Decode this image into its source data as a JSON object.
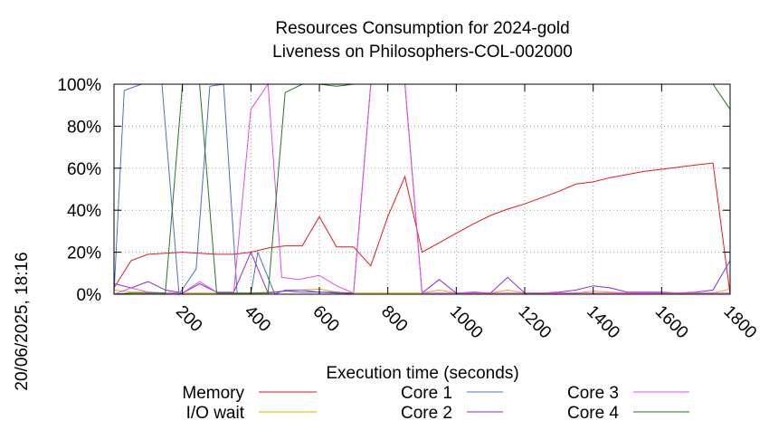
{
  "chart_data": {
    "type": "line",
    "title_line1": "Resources Consumption for 2024-gold",
    "title_line2": "Liveness on Philosophers-COL-002000",
    "xlabel": "Execution time (seconds)",
    "ylabel": "",
    "side_label": "20/06/2025, 18:16",
    "xlim": [
      0,
      1800
    ],
    "ylim": [
      0,
      100
    ],
    "x_ticks": [
      "200",
      "400",
      "600",
      "800",
      "1000",
      "1200",
      "1400",
      "1600",
      "1800"
    ],
    "x_tick_values": [
      200,
      400,
      600,
      800,
      1000,
      1200,
      1400,
      1600,
      1800
    ],
    "y_ticks": [
      "0%",
      "20%",
      "40%",
      "60%",
      "80%",
      "100%"
    ],
    "y_tick_values": [
      0,
      20,
      40,
      60,
      80,
      100
    ],
    "grid": true,
    "legend_placement": "bottom",
    "series": [
      {
        "name": "Memory",
        "color": "#e41a1c",
        "points": [
          [
            0,
            3
          ],
          [
            50,
            16
          ],
          [
            100,
            19
          ],
          [
            150,
            19.5
          ],
          [
            200,
            20
          ],
          [
            250,
            19.5
          ],
          [
            300,
            19
          ],
          [
            350,
            19
          ],
          [
            400,
            20
          ],
          [
            450,
            22
          ],
          [
            500,
            23
          ],
          [
            550,
            23
          ],
          [
            600,
            37
          ],
          [
            650,
            22.5
          ],
          [
            700,
            22.5
          ],
          [
            750,
            13.5
          ],
          [
            800,
            37
          ],
          [
            850,
            56
          ],
          [
            900,
            20
          ],
          [
            950,
            24.5
          ],
          [
            1000,
            29
          ],
          [
            1050,
            33.5
          ],
          [
            1100,
            37.5
          ],
          [
            1150,
            40.5
          ],
          [
            1200,
            43
          ],
          [
            1250,
            46
          ],
          [
            1300,
            49
          ],
          [
            1350,
            52.5
          ],
          [
            1400,
            53.5
          ],
          [
            1450,
            55.5
          ],
          [
            1500,
            57
          ],
          [
            1550,
            58.5
          ],
          [
            1600,
            59.5
          ],
          [
            1650,
            60.5
          ],
          [
            1700,
            61.5
          ],
          [
            1750,
            62.5
          ],
          [
            1800,
            0
          ]
        ]
      },
      {
        "name": "I/O wait",
        "color": "#f0a30a",
        "points": [
          [
            0,
            2
          ],
          [
            50,
            1
          ],
          [
            100,
            1
          ],
          [
            150,
            0.5
          ],
          [
            200,
            0.5
          ],
          [
            250,
            0.5
          ],
          [
            300,
            0.5
          ],
          [
            350,
            0.5
          ],
          [
            400,
            0.5
          ],
          [
            450,
            1
          ],
          [
            500,
            1.5
          ],
          [
            550,
            2
          ],
          [
            600,
            2.5
          ],
          [
            650,
            1
          ],
          [
            700,
            0.5
          ],
          [
            750,
            0.5
          ],
          [
            800,
            0.5
          ],
          [
            850,
            0.5
          ],
          [
            900,
            0.5
          ],
          [
            950,
            2
          ],
          [
            1000,
            0.5
          ],
          [
            1050,
            0.5
          ],
          [
            1100,
            0.5
          ],
          [
            1150,
            2
          ],
          [
            1200,
            0.5
          ],
          [
            1250,
            0.5
          ],
          [
            1300,
            0.5
          ],
          [
            1350,
            0.5
          ],
          [
            1400,
            1.5
          ],
          [
            1450,
            1
          ],
          [
            1500,
            0.5
          ],
          [
            1550,
            0.5
          ],
          [
            1600,
            0.5
          ],
          [
            1650,
            0.5
          ],
          [
            1700,
            0.5
          ],
          [
            1750,
            0.5
          ],
          [
            1800,
            2.5
          ]
        ]
      },
      {
        "name": "Core 1",
        "color": "#4b6fc8",
        "points": [
          [
            0,
            0
          ],
          [
            30,
            97
          ],
          [
            80,
            100
          ],
          [
            140,
            100
          ],
          [
            190,
            0
          ],
          [
            240,
            12
          ],
          [
            280,
            99
          ],
          [
            320,
            100
          ],
          [
            360,
            0
          ],
          [
            400,
            0
          ],
          [
            420,
            20
          ],
          [
            470,
            0
          ],
          [
            500,
            2
          ],
          [
            550,
            2
          ],
          [
            600,
            1
          ],
          [
            650,
            1
          ],
          [
            700,
            0
          ],
          [
            750,
            0
          ],
          [
            800,
            0
          ],
          [
            850,
            0
          ],
          [
            900,
            0
          ],
          [
            950,
            0
          ],
          [
            1000,
            0
          ],
          [
            1050,
            0
          ],
          [
            1100,
            0
          ],
          [
            1150,
            0
          ],
          [
            1200,
            0
          ],
          [
            1250,
            0
          ],
          [
            1300,
            0
          ],
          [
            1350,
            0
          ],
          [
            1400,
            0
          ],
          [
            1450,
            0
          ],
          [
            1500,
            0
          ],
          [
            1550,
            0
          ],
          [
            1600,
            0
          ],
          [
            1650,
            0
          ],
          [
            1700,
            0
          ],
          [
            1750,
            0
          ],
          [
            1800,
            0
          ]
        ]
      },
      {
        "name": "Core 2",
        "color": "#8b2bd9",
        "points": [
          [
            0,
            5
          ],
          [
            50,
            3
          ],
          [
            100,
            6
          ],
          [
            150,
            2
          ],
          [
            200,
            0.5
          ],
          [
            250,
            5
          ],
          [
            300,
            1
          ],
          [
            350,
            1
          ],
          [
            400,
            20
          ],
          [
            450,
            0.5
          ],
          [
            500,
            1.5
          ],
          [
            550,
            1
          ],
          [
            600,
            1
          ],
          [
            650,
            0.5
          ],
          [
            700,
            0.5
          ],
          [
            750,
            100
          ],
          [
            800,
            100
          ],
          [
            850,
            100
          ],
          [
            900,
            0.5
          ],
          [
            950,
            7
          ],
          [
            1000,
            0.5
          ],
          [
            1050,
            1
          ],
          [
            1100,
            0.5
          ],
          [
            1150,
            8
          ],
          [
            1200,
            0.5
          ],
          [
            1250,
            0.5
          ],
          [
            1300,
            1
          ],
          [
            1350,
            2
          ],
          [
            1400,
            4
          ],
          [
            1450,
            3
          ],
          [
            1500,
            1
          ],
          [
            1550,
            1
          ],
          [
            1600,
            1
          ],
          [
            1650,
            0.5
          ],
          [
            1700,
            1
          ],
          [
            1750,
            2
          ],
          [
            1800,
            16
          ]
        ]
      },
      {
        "name": "Core 3",
        "color": "#e34fe3",
        "points": [
          [
            0,
            0
          ],
          [
            50,
            3
          ],
          [
            100,
            1
          ],
          [
            150,
            0.5
          ],
          [
            200,
            0.5
          ],
          [
            250,
            6
          ],
          [
            300,
            1
          ],
          [
            350,
            1
          ],
          [
            400,
            88
          ],
          [
            450,
            100
          ],
          [
            490,
            8
          ],
          [
            540,
            7
          ],
          [
            600,
            9
          ],
          [
            650,
            4
          ],
          [
            700,
            0.5
          ],
          [
            750,
            100
          ],
          [
            800,
            100
          ],
          [
            850,
            100
          ],
          [
            900,
            0.5
          ],
          [
            950,
            0.5
          ],
          [
            1000,
            0.5
          ],
          [
            1050,
            0.5
          ],
          [
            1100,
            0.5
          ],
          [
            1150,
            0.5
          ],
          [
            1200,
            0.5
          ],
          [
            1250,
            0.5
          ],
          [
            1300,
            0.5
          ],
          [
            1350,
            0.5
          ],
          [
            1400,
            0.5
          ],
          [
            1450,
            0.5
          ],
          [
            1500,
            0.5
          ],
          [
            1550,
            0.5
          ],
          [
            1600,
            0.5
          ],
          [
            1650,
            0.5
          ],
          [
            1700,
            0.5
          ],
          [
            1750,
            0.5
          ],
          [
            1800,
            0.5
          ]
        ]
      },
      {
        "name": "Core 4",
        "color": "#1f7a1f",
        "points": [
          [
            0,
            0
          ],
          [
            50,
            0.5
          ],
          [
            100,
            0.5
          ],
          [
            150,
            0.5
          ],
          [
            200,
            100
          ],
          [
            250,
            100
          ],
          [
            300,
            0.5
          ],
          [
            350,
            0.5
          ],
          [
            400,
            0.5
          ],
          [
            450,
            0.5
          ],
          [
            500,
            96
          ],
          [
            550,
            100
          ],
          [
            600,
            100
          ],
          [
            650,
            99
          ],
          [
            700,
            100
          ],
          [
            750,
            100
          ],
          [
            800,
            100
          ],
          [
            850,
            100
          ],
          [
            900,
            100
          ],
          [
            950,
            100
          ],
          [
            1000,
            100
          ],
          [
            1050,
            100
          ],
          [
            1100,
            100
          ],
          [
            1150,
            100
          ],
          [
            1200,
            100
          ],
          [
            1250,
            100
          ],
          [
            1300,
            100
          ],
          [
            1350,
            100
          ],
          [
            1400,
            100
          ],
          [
            1450,
            100
          ],
          [
            1500,
            100
          ],
          [
            1550,
            100
          ],
          [
            1600,
            100
          ],
          [
            1650,
            100
          ],
          [
            1700,
            100
          ],
          [
            1750,
            100
          ],
          [
            1800,
            88
          ]
        ]
      }
    ]
  }
}
